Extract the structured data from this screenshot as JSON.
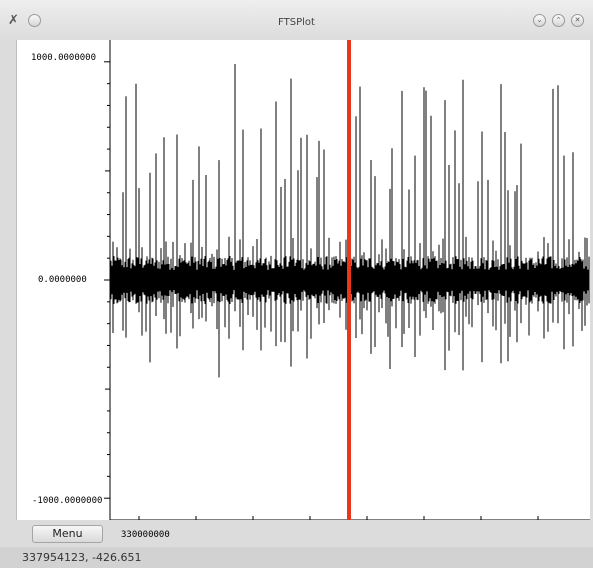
{
  "window": {
    "title": "FTSPlot"
  },
  "titlebar_icons": {
    "app_icon": "tools-icon",
    "minimize": "chevron-down-icon",
    "maximize": "chevron-up-icon",
    "close": "close-icon"
  },
  "menu": {
    "label": "Menu"
  },
  "status": {
    "cursor_readout": "337954123, -426.651"
  },
  "chart_data": {
    "type": "line",
    "y_tick_labels": [
      "1000.0000000",
      "0.0000000",
      "-1000.0000000"
    ],
    "x_tick_labels": [
      "330000000"
    ],
    "ylim": [
      -1100,
      1100
    ],
    "cursor_color": "#e8381c",
    "trace_color": "#000000",
    "grid": false
  }
}
